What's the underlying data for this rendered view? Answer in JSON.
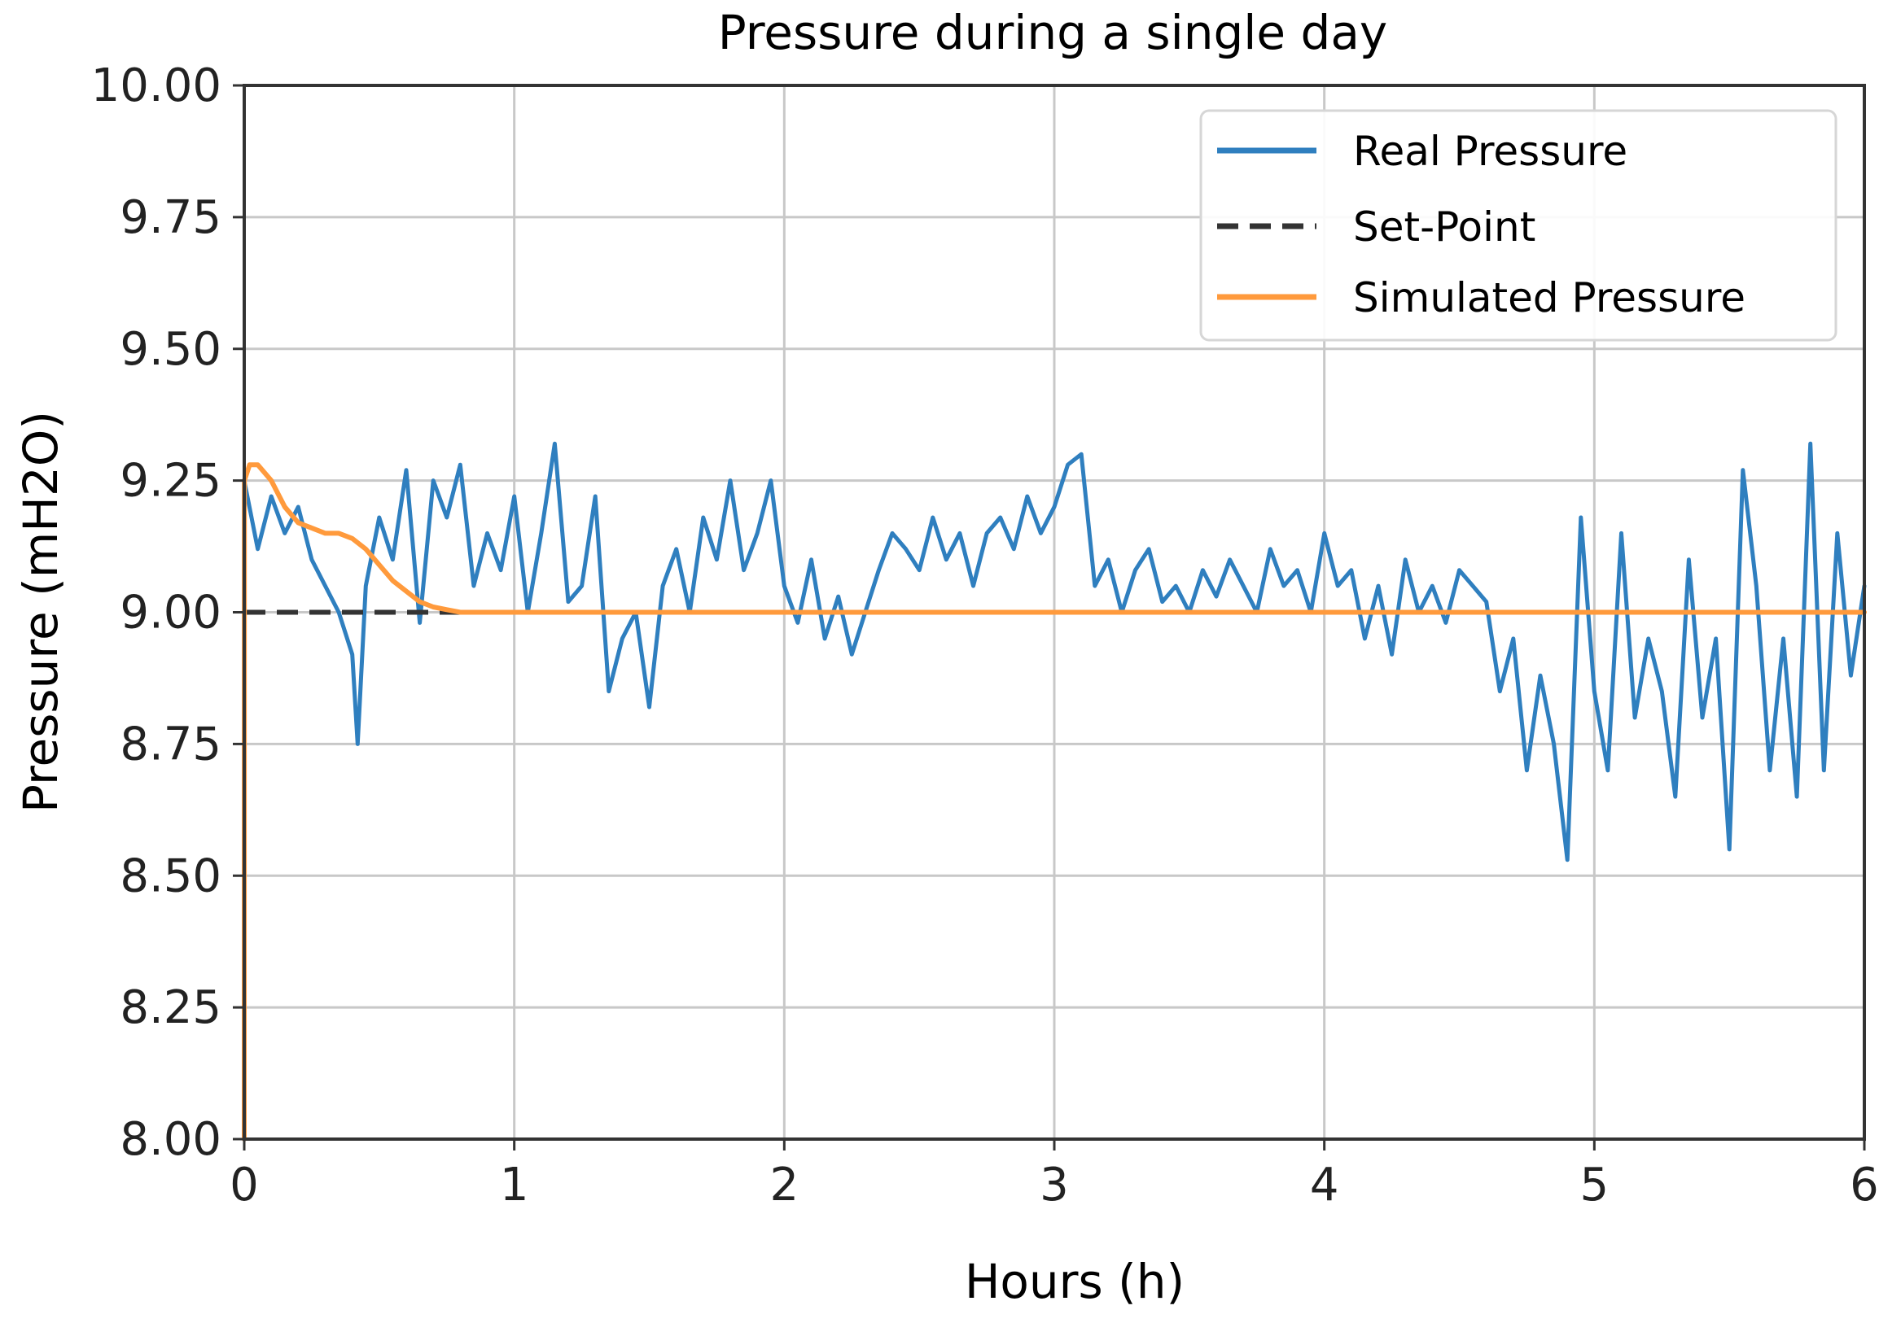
{
  "chart_data": {
    "type": "line",
    "title": "Pressure during a single day",
    "xlabel": "Hours (h)",
    "ylabel": "Pressure (mH2O)",
    "xlim": [
      0,
      6
    ],
    "ylim": [
      8.0,
      10.0
    ],
    "xticks": [
      0,
      1,
      2,
      3,
      4,
      5,
      6
    ],
    "xtick_labels": [
      "0",
      "1",
      "2",
      "3",
      "4",
      "5",
      "6"
    ],
    "yticks": [
      8.0,
      8.25,
      8.5,
      8.75,
      9.0,
      9.25,
      9.5,
      9.75,
      10.0
    ],
    "ytick_labels": [
      "8.00",
      "8.25",
      "8.50",
      "8.75",
      "9.00",
      "9.25",
      "9.50",
      "9.75",
      "10.00"
    ],
    "grid": true,
    "legend_position": "top-right",
    "series": [
      {
        "name": "Real Pressure",
        "color": "#2f7fbf",
        "style": "solid",
        "x": [
          0,
          0.05,
          0.1,
          0.15,
          0.2,
          0.25,
          0.3,
          0.35,
          0.4,
          0.42,
          0.45,
          0.5,
          0.55,
          0.6,
          0.65,
          0.7,
          0.75,
          0.8,
          0.85,
          0.9,
          0.95,
          1.0,
          1.05,
          1.1,
          1.15,
          1.2,
          1.25,
          1.3,
          1.35,
          1.4,
          1.45,
          1.5,
          1.55,
          1.6,
          1.65,
          1.7,
          1.75,
          1.8,
          1.85,
          1.9,
          1.95,
          2.0,
          2.05,
          2.1,
          2.15,
          2.2,
          2.25,
          2.3,
          2.35,
          2.4,
          2.45,
          2.5,
          2.55,
          2.6,
          2.65,
          2.7,
          2.75,
          2.8,
          2.85,
          2.9,
          2.95,
          3.0,
          3.05,
          3.1,
          3.15,
          3.2,
          3.25,
          3.3,
          3.35,
          3.4,
          3.45,
          3.5,
          3.55,
          3.6,
          3.65,
          3.7,
          3.75,
          3.8,
          3.85,
          3.9,
          3.95,
          4.0,
          4.05,
          4.1,
          4.15,
          4.2,
          4.25,
          4.3,
          4.35,
          4.4,
          4.45,
          4.5,
          4.55,
          4.6,
          4.65,
          4.7,
          4.75,
          4.8,
          4.85,
          4.9,
          4.95,
          5.0,
          5.05,
          5.1,
          5.15,
          5.2,
          5.25,
          5.3,
          5.35,
          5.4,
          5.45,
          5.5,
          5.55,
          5.6,
          5.65,
          5.7,
          5.75,
          5.8,
          5.85,
          5.9,
          5.95,
          6.0
        ],
        "values": [
          9.25,
          9.12,
          9.22,
          9.15,
          9.2,
          9.1,
          9.05,
          9.0,
          8.92,
          8.75,
          9.05,
          9.18,
          9.1,
          9.27,
          8.98,
          9.25,
          9.18,
          9.28,
          9.05,
          9.15,
          9.08,
          9.22,
          9.0,
          9.15,
          9.32,
          9.02,
          9.05,
          9.22,
          8.85,
          8.95,
          9.0,
          8.82,
          9.05,
          9.12,
          9.0,
          9.18,
          9.1,
          9.25,
          9.08,
          9.15,
          9.25,
          9.05,
          8.98,
          9.1,
          8.95,
          9.03,
          8.92,
          9.0,
          9.08,
          9.15,
          9.12,
          9.08,
          9.18,
          9.1,
          9.15,
          9.05,
          9.15,
          9.18,
          9.12,
          9.22,
          9.15,
          9.2,
          9.28,
          9.3,
          9.05,
          9.1,
          9.0,
          9.08,
          9.12,
          9.02,
          9.05,
          9.0,
          9.08,
          9.03,
          9.1,
          9.05,
          9.0,
          9.12,
          9.05,
          9.08,
          9.0,
          9.15,
          9.05,
          9.08,
          8.95,
          9.05,
          8.92,
          9.1,
          9.0,
          9.05,
          8.98,
          9.08,
          9.05,
          9.02,
          8.85,
          8.95,
          8.7,
          8.88,
          8.75,
          8.53,
          9.18,
          8.85,
          8.7,
          9.15,
          8.8,
          8.95,
          8.85,
          8.65,
          9.1,
          8.8,
          8.95,
          8.55,
          9.27,
          9.05,
          8.7,
          8.95,
          8.65,
          9.32,
          8.7,
          9.15,
          8.88,
          9.05
        ]
      },
      {
        "name": "Set-Point",
        "color": "#333333",
        "style": "dashed",
        "x": [
          0,
          6
        ],
        "values": [
          9.0,
          9.0
        ]
      },
      {
        "name": "Simulated Pressure",
        "color": "#ff9a3c",
        "style": "solid",
        "x": [
          0,
          0.0005,
          0.02,
          0.05,
          0.1,
          0.15,
          0.2,
          0.25,
          0.3,
          0.35,
          0.4,
          0.45,
          0.5,
          0.55,
          0.6,
          0.65,
          0.7,
          0.75,
          0.8,
          0.9,
          1.0,
          2.0,
          3.0,
          4.0,
          5.0,
          6.0
        ],
        "values": [
          8.0,
          9.25,
          9.28,
          9.28,
          9.25,
          9.2,
          9.17,
          9.16,
          9.15,
          9.15,
          9.14,
          9.12,
          9.09,
          9.06,
          9.04,
          9.02,
          9.01,
          9.005,
          9.0,
          9.0,
          9.0,
          9.0,
          9.0,
          9.0,
          9.0,
          9.0
        ]
      }
    ]
  }
}
